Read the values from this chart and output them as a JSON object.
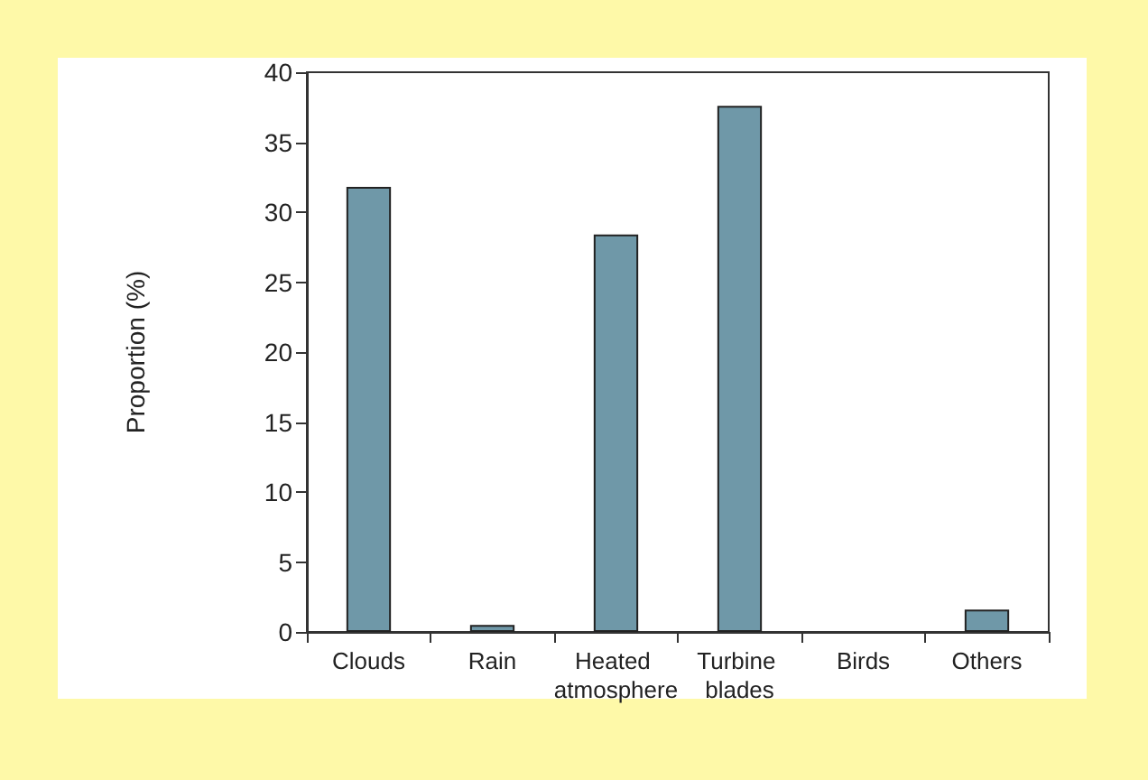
{
  "chart_data": {
    "type": "bar",
    "ylabel": "Proportion (%)",
    "categories": [
      "Clouds",
      "Rain",
      "Heated atmosphere",
      "Turbine blades",
      "Birds",
      "Others"
    ],
    "values": [
      31.8,
      0.5,
      28.4,
      37.6,
      0,
      1.6
    ],
    "color": "#6f98a8",
    "ylim": [
      0,
      40
    ],
    "yticks": [
      0,
      5,
      10,
      15,
      20,
      25,
      30,
      35,
      40
    ],
    "grid": false
  }
}
